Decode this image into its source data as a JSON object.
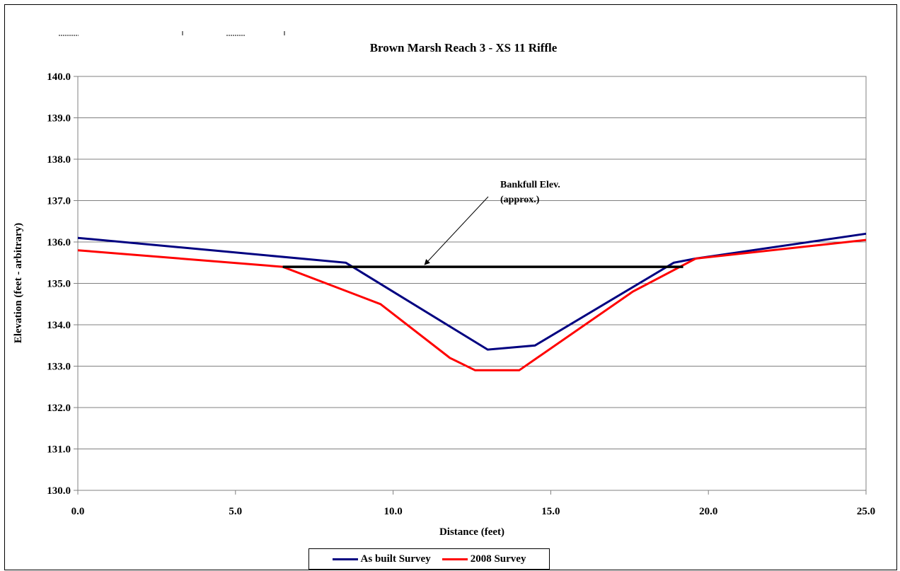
{
  "chart_data": {
    "type": "line",
    "title": "Brown Marsh Reach 3 - XS 11 Riffle",
    "xlabel": "Distance (feet)",
    "ylabel": "Elevation (feet - arbitrary)",
    "xlim": [
      0,
      25
    ],
    "ylim": [
      130,
      140
    ],
    "x_ticks": [
      "0.0",
      "5.0",
      "10.0",
      "15.0",
      "20.0",
      "25.0"
    ],
    "y_ticks": [
      "130.0",
      "131.0",
      "132.0",
      "133.0",
      "134.0",
      "135.0",
      "136.0",
      "137.0",
      "138.0",
      "139.0",
      "140.0"
    ],
    "grid": true,
    "legend_position": "bottom",
    "series": [
      {
        "name": "As built Survey",
        "color": "#000080",
        "x": [
          0.0,
          8.5,
          13.0,
          14.5,
          18.9,
          19.6,
          25.0
        ],
        "y": [
          136.1,
          135.5,
          133.4,
          133.5,
          135.5,
          135.6,
          136.2
        ]
      },
      {
        "name": "2008 Survey",
        "color": "#ff0000",
        "x": [
          0.0,
          6.5,
          9.6,
          11.8,
          12.6,
          14.0,
          17.6,
          19.1,
          19.6,
          25.0
        ],
        "y": [
          135.8,
          135.4,
          134.5,
          133.2,
          132.9,
          132.9,
          134.8,
          135.4,
          135.6,
          136.05
        ]
      }
    ],
    "bankfull": {
      "x": [
        6.5,
        19.2
      ],
      "y": 135.4,
      "color": "#000000",
      "annotation": "Bankfull Elev.\n(approx.)",
      "annotation_lines": [
        "Bankfull Elev.",
        "(approx.)"
      ],
      "arrow_target_x": 11.0
    }
  }
}
